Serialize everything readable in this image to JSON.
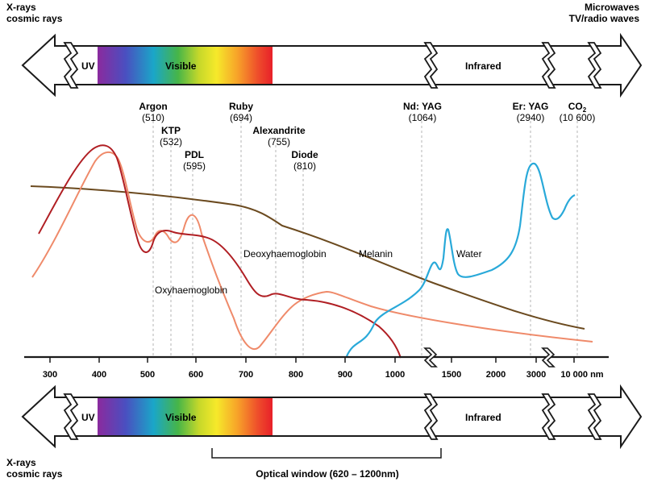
{
  "spectrum_bands": {
    "left_top_line1": "X-rays",
    "left_top_line2": "cosmic rays",
    "right_top_line1": "Microwaves",
    "right_top_line2": "TV/radio waves",
    "uv": "UV",
    "visible": "Visible",
    "infrared": "Infrared",
    "left_bottom_line1": "X-rays",
    "left_bottom_line2": "cosmic rays"
  },
  "lasers": [
    {
      "name": "Argon",
      "wavelength": "(510)"
    },
    {
      "name": "KTP",
      "wavelength": "(532)"
    },
    {
      "name": "PDL",
      "wavelength": "(595)"
    },
    {
      "name": "Ruby",
      "wavelength": "(694)"
    },
    {
      "name": "Alexandrite",
      "wavelength": "(755)"
    },
    {
      "name": "Diode",
      "wavelength": "(810)"
    },
    {
      "name": "Nd: YAG",
      "wavelength": "(1064)"
    },
    {
      "name": "Er: YAG",
      "wavelength": "(2940)"
    },
    {
      "name": "CO",
      "name_sub": "2",
      "wavelength": "(10 600)"
    }
  ],
  "curves": [
    {
      "name": "Oxyhaemoglobin",
      "color": "#ef8a6a"
    },
    {
      "name": "Deoxyhaemoglobin",
      "color": "#b01e23"
    },
    {
      "name": "Melanin",
      "color": "#6b4a1f"
    },
    {
      "name": "Water",
      "color": "#29a9d9"
    }
  ],
  "axis": {
    "ticks": [
      "300",
      "400",
      "500",
      "600",
      "700",
      "800",
      "900",
      "1000",
      "1500",
      "2000",
      "3000",
      "10 000 nm"
    ]
  },
  "optical_window": {
    "label": "Optical window (620 – 1200nm)"
  },
  "colors": {
    "uv_violet": "#8b2a9e",
    "visible_red": "#e8202a",
    "axis": "#1a1a1a"
  }
}
